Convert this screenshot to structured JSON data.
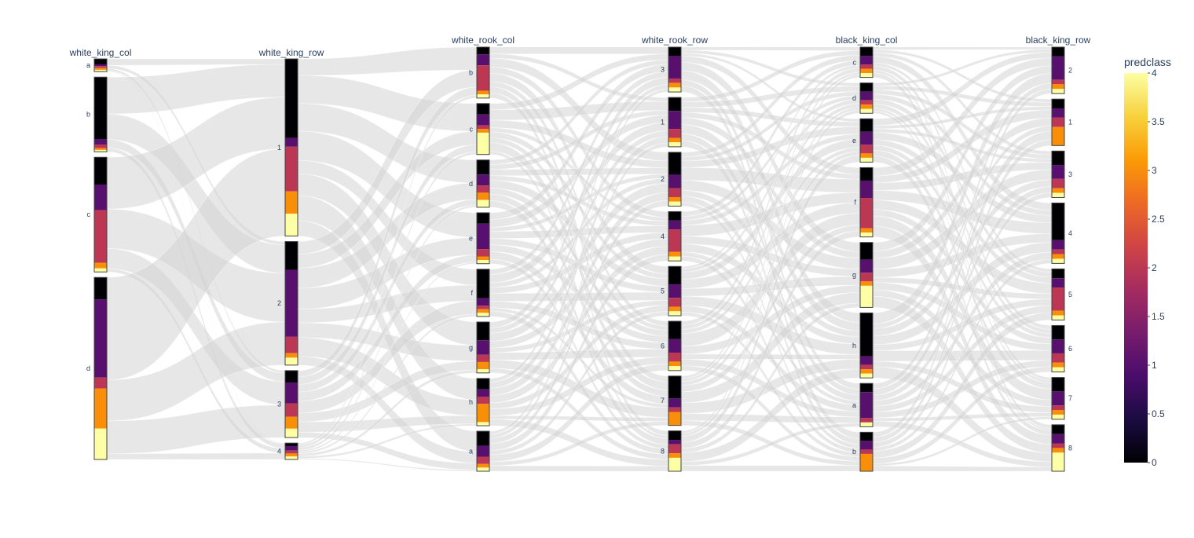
{
  "chart_data": {
    "type": "parallel_categories",
    "ribbon_color": "#d3d3d3",
    "colorscale": "Inferno",
    "colorscale_stops": [
      "#000004",
      "#1b0c41",
      "#4a0c6b",
      "#781c6d",
      "#a52c60",
      "#cf4446",
      "#ed6925",
      "#fb9b06",
      "#f7d13d",
      "#fcffa4"
    ],
    "band_colors": [
      "#000004",
      "#57106e",
      "#bc3754",
      "#f98e09",
      "#fcffa4"
    ],
    "colorbar": {
      "title": "predclass",
      "range": [
        0,
        4
      ],
      "ticks": [
        "0",
        "0.5",
        "1",
        "1.5",
        "2",
        "2.5",
        "3",
        "3.5",
        "4"
      ]
    },
    "dimensions": [
      {
        "name": "white_king_col",
        "categories": [
          {
            "label": "a",
            "counts": [
              3,
              1,
              1,
              1,
              1
            ]
          },
          {
            "label": "b",
            "counts": [
              34,
              3,
              2,
              1,
              1
            ]
          },
          {
            "label": "c",
            "counts": [
              15,
              14,
              29,
              3,
              2
            ]
          },
          {
            "label": "d",
            "counts": [
              12,
              43,
              6,
              22,
              17
            ]
          }
        ]
      },
      {
        "name": "white_king_row",
        "categories": [
          {
            "label": "1",
            "counts": [
              53,
              6,
              30,
              15,
              15
            ]
          },
          {
            "label": "2",
            "counts": [
              19,
              45,
              11,
              3,
              5
            ]
          },
          {
            "label": "3",
            "counts": [
              8,
              14,
              9,
              8,
              6
            ]
          },
          {
            "label": "4",
            "counts": [
              2,
              3,
              2,
              2,
              2
            ]
          }
        ]
      },
      {
        "name": "white_rook_col",
        "categories": [
          {
            "label": "b",
            "counts": [
              2,
              3,
              7,
              1,
              1
            ]
          },
          {
            "label": "c",
            "counts": [
              3,
              3,
              1,
              1,
              6
            ]
          },
          {
            "label": "d",
            "counts": [
              4,
              3,
              2,
              2,
              2
            ]
          },
          {
            "label": "e",
            "counts": [
              3,
              7,
              2,
              1,
              1
            ]
          },
          {
            "label": "f",
            "counts": [
              8,
              2,
              1,
              1,
              1
            ]
          },
          {
            "label": "g",
            "counts": [
              5,
              4,
              2,
              2,
              1
            ]
          },
          {
            "label": "h",
            "counts": [
              3,
              2,
              2,
              5,
              1
            ]
          },
          {
            "label": "a",
            "counts": [
              4,
              3,
              2,
              1,
              1
            ]
          }
        ]
      },
      {
        "name": "white_rook_row",
        "categories": [
          {
            "label": "3",
            "counts": [
              2,
              5,
              1,
              1,
              1
            ]
          },
          {
            "label": "1",
            "counts": [
              3,
              4,
              2,
              1,
              1
            ]
          },
          {
            "label": "2",
            "counts": [
              5,
              3,
              2,
              1,
              1
            ]
          },
          {
            "label": "4",
            "counts": [
              2,
              2,
              5,
              1,
              1
            ]
          },
          {
            "label": "5",
            "counts": [
              4,
              3,
              2,
              1,
              1
            ]
          },
          {
            "label": "6",
            "counts": [
              4,
              3,
              2,
              1,
              1
            ]
          },
          {
            "label": "7",
            "counts": [
              5,
              2,
              1,
              3,
              0
            ]
          },
          {
            "label": "8",
            "counts": [
              2,
              1,
              2,
              1,
              3
            ]
          }
        ]
      },
      {
        "name": "black_king_col",
        "categories": [
          {
            "label": "c",
            "counts": [
              2,
              2,
              1,
              1,
              1
            ]
          },
          {
            "label": "d",
            "counts": [
              2,
              2,
              1,
              1,
              1
            ]
          },
          {
            "label": "e",
            "counts": [
              3,
              3,
              2,
              1,
              1
            ]
          },
          {
            "label": "f",
            "counts": [
              3,
              4,
              7,
              1,
              1
            ]
          },
          {
            "label": "g",
            "counts": [
              4,
              3,
              2,
              1,
              5
            ]
          },
          {
            "label": "h",
            "counts": [
              10,
              2,
              1,
              1,
              1
            ]
          },
          {
            "label": "a",
            "counts": [
              2,
              6,
              1,
              0,
              1
            ]
          },
          {
            "label": "b",
            "counts": [
              2,
              2,
              1,
              4,
              0
            ]
          }
        ]
      },
      {
        "name": "black_king_row",
        "categories": [
          {
            "label": "2",
            "counts": [
              2,
              5,
              1,
              1,
              1
            ]
          },
          {
            "label": "1",
            "counts": [
              2,
              2,
              2,
              4,
              0
            ]
          },
          {
            "label": "3",
            "counts": [
              3,
              3,
              2,
              1,
              1
            ]
          },
          {
            "label": "4",
            "counts": [
              8,
              2,
              1,
              1,
              1
            ]
          },
          {
            "label": "5",
            "counts": [
              2,
              2,
              5,
              1,
              1
            ]
          },
          {
            "label": "6",
            "counts": [
              3,
              3,
              2,
              1,
              1
            ]
          },
          {
            "label": "7",
            "counts": [
              3,
              3,
              1,
              1,
              1
            ]
          },
          {
            "label": "8",
            "counts": [
              2,
              2,
              1,
              1,
              4
            ]
          }
        ]
      }
    ]
  }
}
